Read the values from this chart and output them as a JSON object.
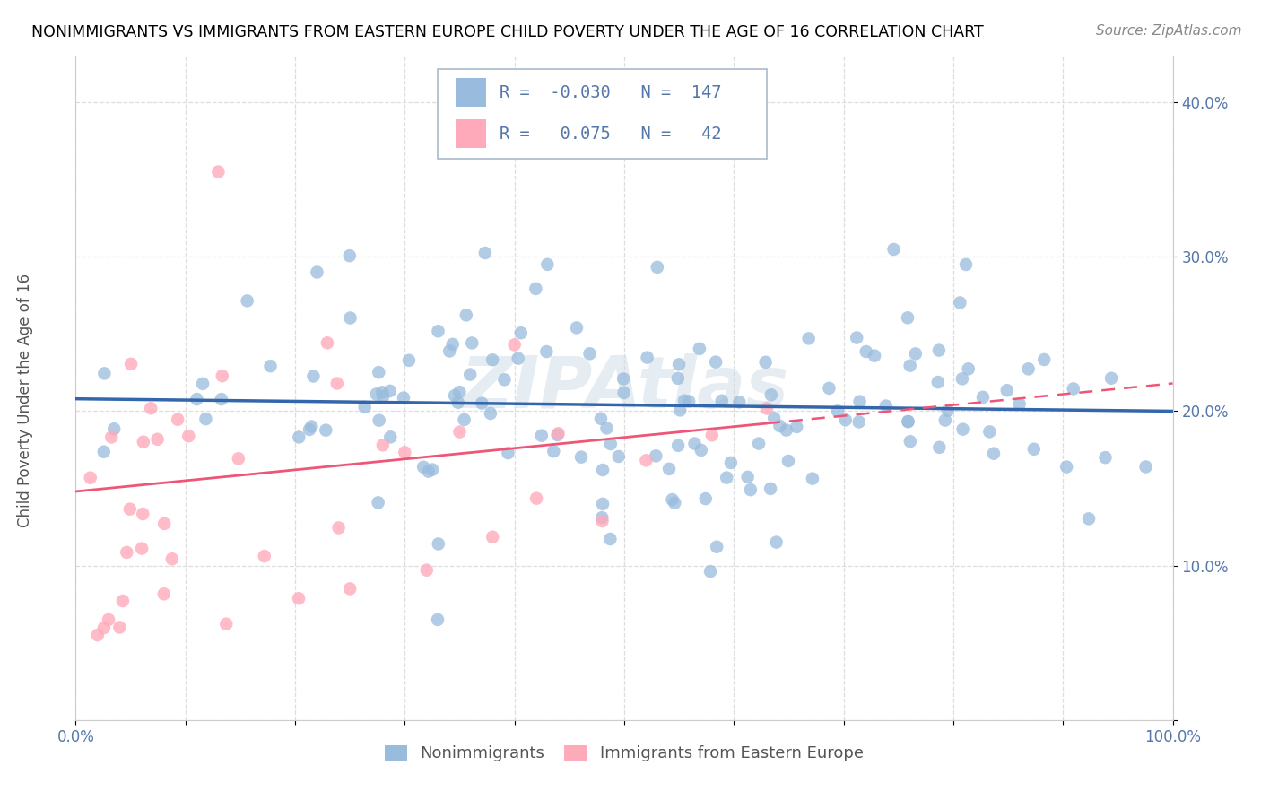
{
  "title": "NONIMMIGRANTS VS IMMIGRANTS FROM EASTERN EUROPE CHILD POVERTY UNDER THE AGE OF 16 CORRELATION CHART",
  "source": "Source: ZipAtlas.com",
  "ylabel": "Child Poverty Under the Age of 16",
  "xlim": [
    0,
    1.0
  ],
  "ylim": [
    0.0,
    0.43
  ],
  "ytick_positions": [
    0.0,
    0.1,
    0.2,
    0.3,
    0.4
  ],
  "ytick_labels": [
    "",
    "10.0%",
    "20.0%",
    "30.0%",
    "40.0%"
  ],
  "xtick_positions": [
    0.0,
    0.1,
    0.2,
    0.3,
    0.4,
    0.5,
    0.6,
    0.7,
    0.8,
    0.9,
    1.0
  ],
  "xtick_labels": [
    "0.0%",
    "",
    "",
    "",
    "",
    "",
    "",
    "",
    "",
    "",
    "100.0%"
  ],
  "nonimmigrants_R": -0.03,
  "nonimmigrants_N": 147,
  "immigrants_R": 0.075,
  "immigrants_N": 42,
  "blue_color": "#99BBDD",
  "pink_color": "#FFAABB",
  "blue_line_color": "#3366AA",
  "pink_line_color": "#EE5577",
  "watermark_color": "#D0DDE8",
  "legend_border_color": "#AABBCC",
  "tick_color": "#5577AA",
  "title_color": "#000000",
  "source_color": "#888888",
  "ylabel_color": "#555555",
  "grid_color": "#DDDDDD",
  "spine_color": "#CCCCCC"
}
